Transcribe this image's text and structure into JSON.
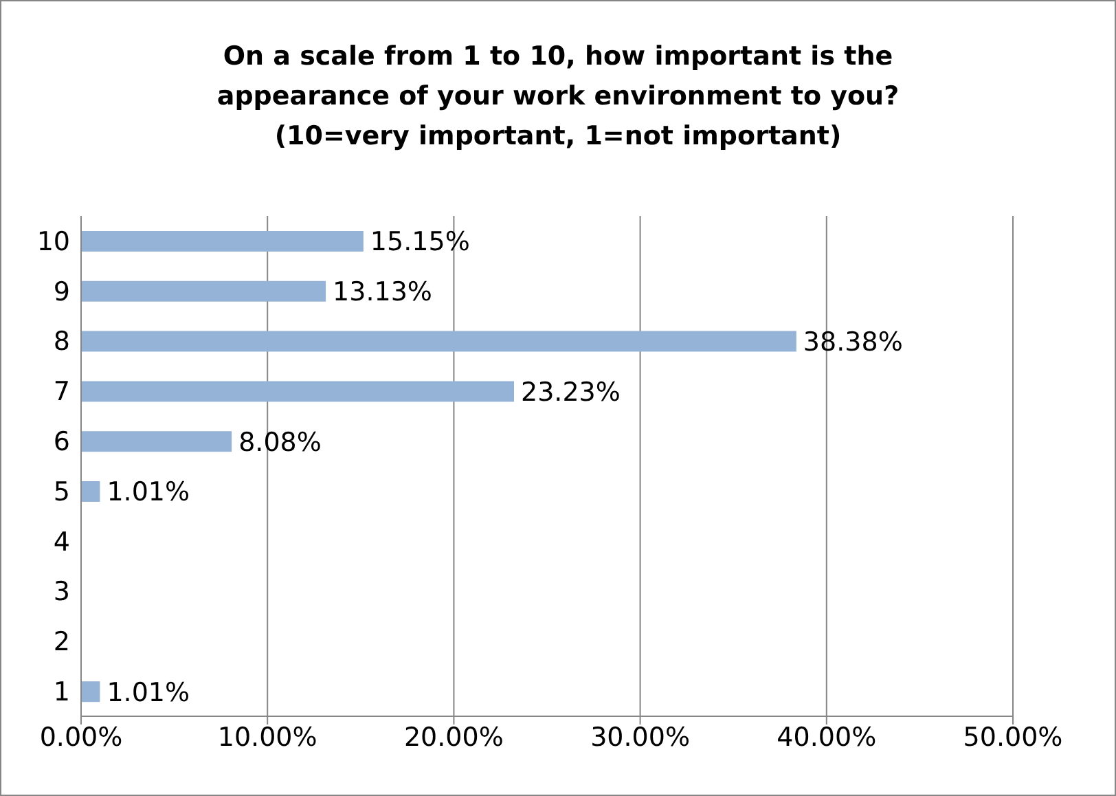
{
  "chart_data": {
    "type": "bar",
    "orientation": "horizontal",
    "title": "On a scale from 1 to 10, how important is the appearance of your work environment to you? (10=very important, 1=not important)",
    "categories": [
      "10",
      "9",
      "8",
      "7",
      "6",
      "5",
      "4",
      "3",
      "2",
      "1"
    ],
    "values": [
      15.15,
      13.13,
      38.38,
      23.23,
      8.08,
      1.01,
      null,
      null,
      null,
      1.01
    ],
    "value_labels": [
      "15.15%",
      "13.13%",
      "38.38%",
      "23.23%",
      "8.08%",
      "1.01%",
      null,
      null,
      null,
      "1.01%"
    ],
    "color": "#95b3d7",
    "xlim": [
      0,
      50
    ],
    "xticks": [
      {
        "value": 0,
        "label": "0.00%"
      },
      {
        "value": 10,
        "label": "10.00%"
      },
      {
        "value": 20,
        "label": "20.00%"
      },
      {
        "value": 30,
        "label": "30.00%"
      },
      {
        "value": 40,
        "label": "40.00%"
      },
      {
        "value": 50,
        "label": "50.00%"
      }
    ],
    "grid": "x"
  }
}
